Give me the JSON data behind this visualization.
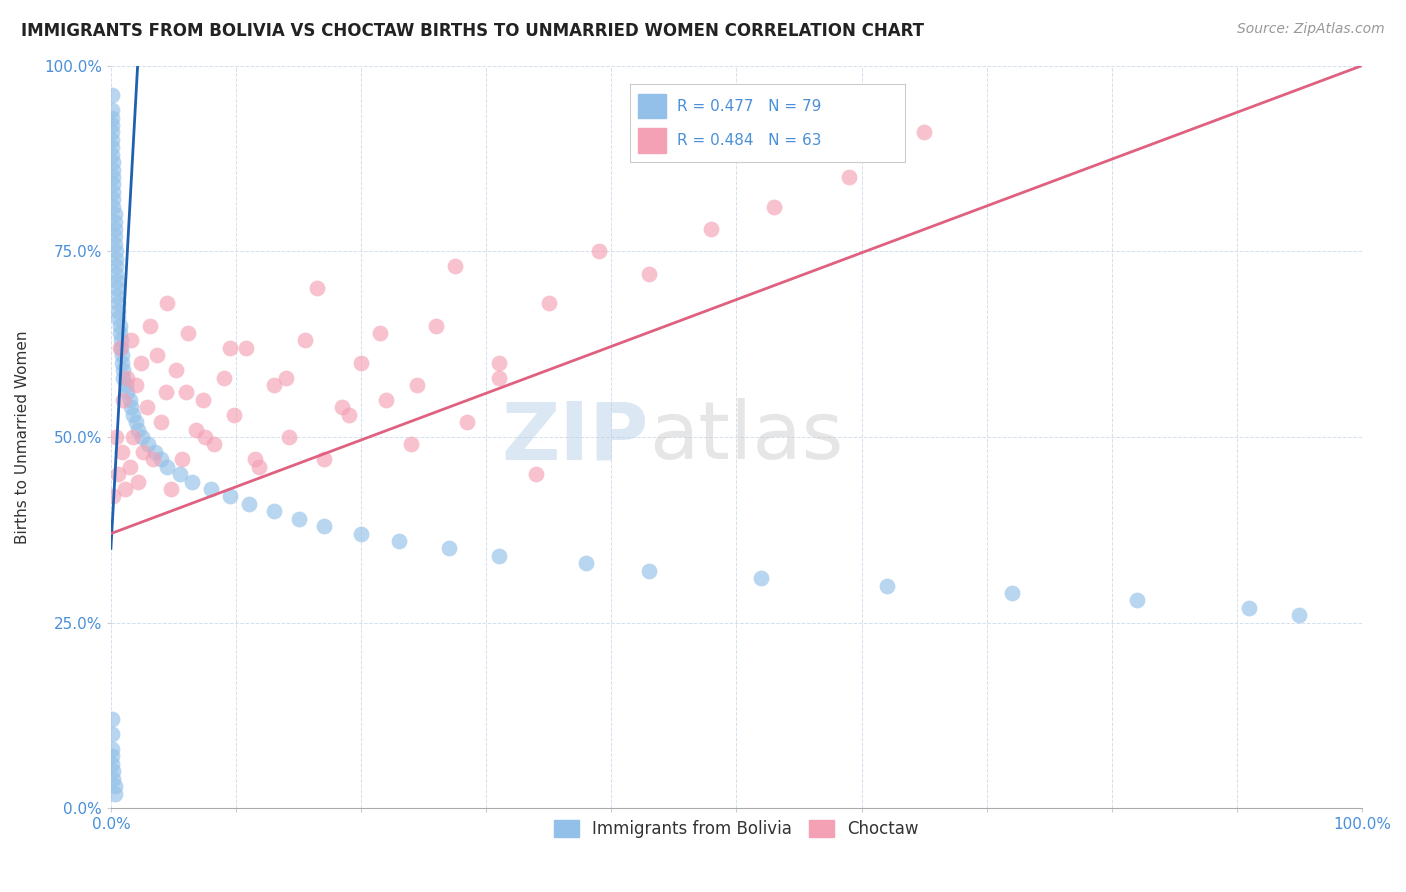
{
  "title": "IMMIGRANTS FROM BOLIVIA VS CHOCTAW BIRTHS TO UNMARRIED WOMEN CORRELATION CHART",
  "source": "Source: ZipAtlas.com",
  "ylabel": "Births to Unmarried Women",
  "legend_label_blue": "Immigrants from Bolivia",
  "legend_label_pink": "Choctaw",
  "legend_r_blue": "R = 0.477",
  "legend_n_blue": "N = 79",
  "legend_r_pink": "R = 0.484",
  "legend_n_pink": "N = 63",
  "xlim": [
    0,
    1
  ],
  "ylim": [
    0,
    1
  ],
  "xticks": [
    0.0,
    0.1,
    0.2,
    0.3,
    0.4,
    0.5,
    0.6,
    0.7,
    0.8,
    0.9,
    1.0
  ],
  "yticks": [
    0.0,
    0.25,
    0.5,
    0.75,
    1.0
  ],
  "xtick_labels": [
    "0.0%",
    "",
    "",
    "",
    "",
    "",
    "",
    "",
    "",
    "",
    "100.0%"
  ],
  "ytick_labels": [
    "0.0%",
    "25.0%",
    "50.0%",
    "75.0%",
    "100.0%"
  ],
  "color_blue": "#92C0E8",
  "color_pink": "#F4A0B5",
  "color_blue_line": "#2060B0",
  "color_pink_line": "#E06080",
  "background_color": "#FFFFFF",
  "watermark_zip": "ZIP",
  "watermark_atlas": "atlas",
  "blue_x": [
    0.001,
    0.001,
    0.001,
    0.001,
    0.001,
    0.001,
    0.001,
    0.001,
    0.002,
    0.002,
    0.002,
    0.002,
    0.002,
    0.002,
    0.002,
    0.003,
    0.003,
    0.003,
    0.003,
    0.003,
    0.004,
    0.004,
    0.004,
    0.004,
    0.005,
    0.005,
    0.005,
    0.006,
    0.006,
    0.006,
    0.007,
    0.007,
    0.008,
    0.008,
    0.009,
    0.009,
    0.01,
    0.01,
    0.012,
    0.013,
    0.015,
    0.016,
    0.018,
    0.02,
    0.022,
    0.025,
    0.03,
    0.035,
    0.04,
    0.045,
    0.055,
    0.065,
    0.08,
    0.095,
    0.11,
    0.13,
    0.15,
    0.17,
    0.2,
    0.23,
    0.27,
    0.31,
    0.38,
    0.43,
    0.52,
    0.62,
    0.72,
    0.82,
    0.91,
    0.95,
    0.001,
    0.001,
    0.001,
    0.001,
    0.001,
    0.002,
    0.002,
    0.003,
    0.003
  ],
  "blue_y": [
    0.96,
    0.94,
    0.93,
    0.92,
    0.91,
    0.9,
    0.89,
    0.88,
    0.87,
    0.86,
    0.85,
    0.84,
    0.83,
    0.82,
    0.81,
    0.8,
    0.79,
    0.78,
    0.77,
    0.76,
    0.75,
    0.74,
    0.73,
    0.72,
    0.71,
    0.7,
    0.69,
    0.68,
    0.67,
    0.66,
    0.65,
    0.64,
    0.63,
    0.62,
    0.61,
    0.6,
    0.59,
    0.58,
    0.57,
    0.56,
    0.55,
    0.54,
    0.53,
    0.52,
    0.51,
    0.5,
    0.49,
    0.48,
    0.47,
    0.46,
    0.45,
    0.44,
    0.43,
    0.42,
    0.41,
    0.4,
    0.39,
    0.38,
    0.37,
    0.36,
    0.35,
    0.34,
    0.33,
    0.32,
    0.31,
    0.3,
    0.29,
    0.28,
    0.27,
    0.26,
    0.12,
    0.1,
    0.08,
    0.07,
    0.06,
    0.05,
    0.04,
    0.03,
    0.02
  ],
  "pink_x": [
    0.002,
    0.004,
    0.006,
    0.007,
    0.009,
    0.01,
    0.011,
    0.013,
    0.015,
    0.016,
    0.018,
    0.02,
    0.022,
    0.024,
    0.026,
    0.029,
    0.031,
    0.034,
    0.037,
    0.04,
    0.044,
    0.048,
    0.052,
    0.057,
    0.062,
    0.068,
    0.074,
    0.082,
    0.09,
    0.098,
    0.108,
    0.118,
    0.13,
    0.142,
    0.155,
    0.17,
    0.185,
    0.2,
    0.22,
    0.24,
    0.26,
    0.285,
    0.31,
    0.34,
    0.045,
    0.06,
    0.075,
    0.095,
    0.115,
    0.14,
    0.165,
    0.19,
    0.215,
    0.245,
    0.275,
    0.31,
    0.35,
    0.39,
    0.43,
    0.48,
    0.53,
    0.59,
    0.65
  ],
  "pink_y": [
    0.42,
    0.5,
    0.45,
    0.62,
    0.48,
    0.55,
    0.43,
    0.58,
    0.46,
    0.63,
    0.5,
    0.57,
    0.44,
    0.6,
    0.48,
    0.54,
    0.65,
    0.47,
    0.61,
    0.52,
    0.56,
    0.43,
    0.59,
    0.47,
    0.64,
    0.51,
    0.55,
    0.49,
    0.58,
    0.53,
    0.62,
    0.46,
    0.57,
    0.5,
    0.63,
    0.47,
    0.54,
    0.6,
    0.55,
    0.49,
    0.65,
    0.52,
    0.58,
    0.45,
    0.68,
    0.56,
    0.5,
    0.62,
    0.47,
    0.58,
    0.7,
    0.53,
    0.64,
    0.57,
    0.73,
    0.6,
    0.68,
    0.75,
    0.72,
    0.78,
    0.81,
    0.85,
    0.91
  ],
  "blue_trend_x": [
    0.0,
    0.022
  ],
  "blue_trend_y": [
    0.35,
    1.02
  ],
  "pink_trend_x": [
    0.0,
    1.0
  ],
  "pink_trend_y": [
    0.37,
    1.0
  ]
}
